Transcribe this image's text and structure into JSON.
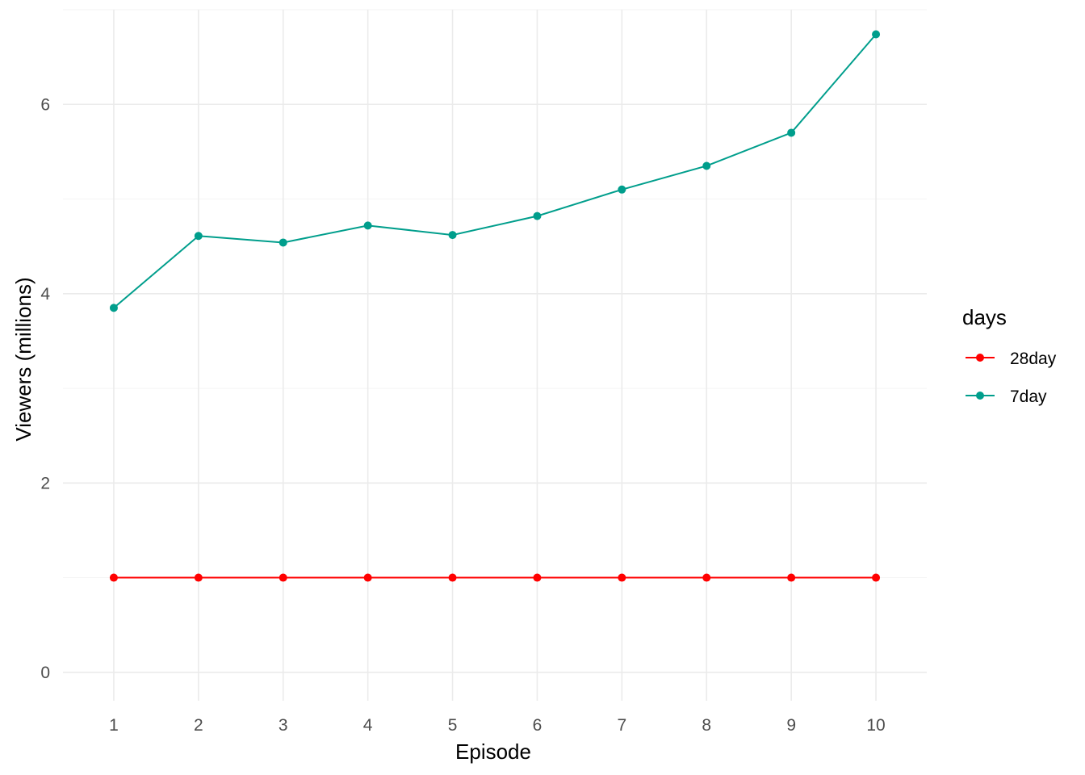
{
  "chart_data": {
    "type": "line",
    "title": "",
    "xlabel": "Episode",
    "ylabel": "Viewers (millions)",
    "x": [
      1,
      2,
      3,
      4,
      5,
      6,
      7,
      8,
      9,
      10
    ],
    "x_tick_labels": [
      "1",
      "2",
      "3",
      "4",
      "5",
      "6",
      "7",
      "8",
      "9",
      "10"
    ],
    "y_tick_labels": [
      "0",
      "2",
      "4",
      "6"
    ],
    "y_ticks": [
      0,
      2,
      4,
      6
    ],
    "xlim": [
      0.4,
      10.6
    ],
    "ylim": [
      -0.3,
      7.0
    ],
    "grid": true,
    "legend": {
      "title": "days",
      "position": "right"
    },
    "series": [
      {
        "name": "28day",
        "color": "#ff0000",
        "values": [
          1.0,
          1.0,
          1.0,
          1.0,
          1.0,
          1.0,
          1.0,
          1.0,
          1.0,
          1.0
        ]
      },
      {
        "name": "7day",
        "color": "#009e8c",
        "values": [
          3.85,
          4.61,
          4.54,
          4.72,
          4.62,
          4.82,
          5.1,
          5.35,
          5.7,
          6.74
        ]
      }
    ]
  }
}
